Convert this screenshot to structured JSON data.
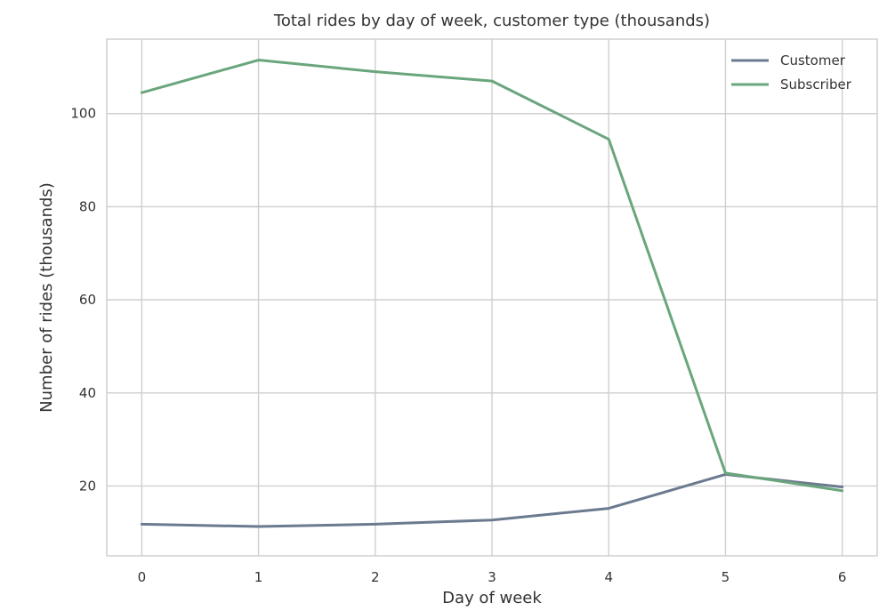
{
  "chart_data": {
    "type": "line",
    "title": "Total rides by day of week, customer type (thousands)",
    "xlabel": "Day of week",
    "ylabel": "Number of rides (thousands)",
    "x": [
      0,
      1,
      2,
      3,
      4,
      5,
      6
    ],
    "x_ticks": [
      "0",
      "1",
      "2",
      "3",
      "4",
      "5",
      "6"
    ],
    "y_ticks": [
      "20",
      "40",
      "60",
      "80",
      "100"
    ],
    "xlim": [
      -0.3,
      6.3
    ],
    "ylim": [
      5,
      116
    ],
    "grid": true,
    "legend_position": "top-right",
    "series": [
      {
        "name": "Customer",
        "color": "#6b7a8f",
        "values": [
          11.8,
          11.3,
          11.8,
          12.7,
          15.2,
          22.5,
          19.8
        ]
      },
      {
        "name": "Subscriber",
        "color": "#6aa67c",
        "values": [
          104.5,
          111.5,
          109.0,
          107.0,
          94.5,
          22.8,
          19.0
        ]
      }
    ]
  }
}
